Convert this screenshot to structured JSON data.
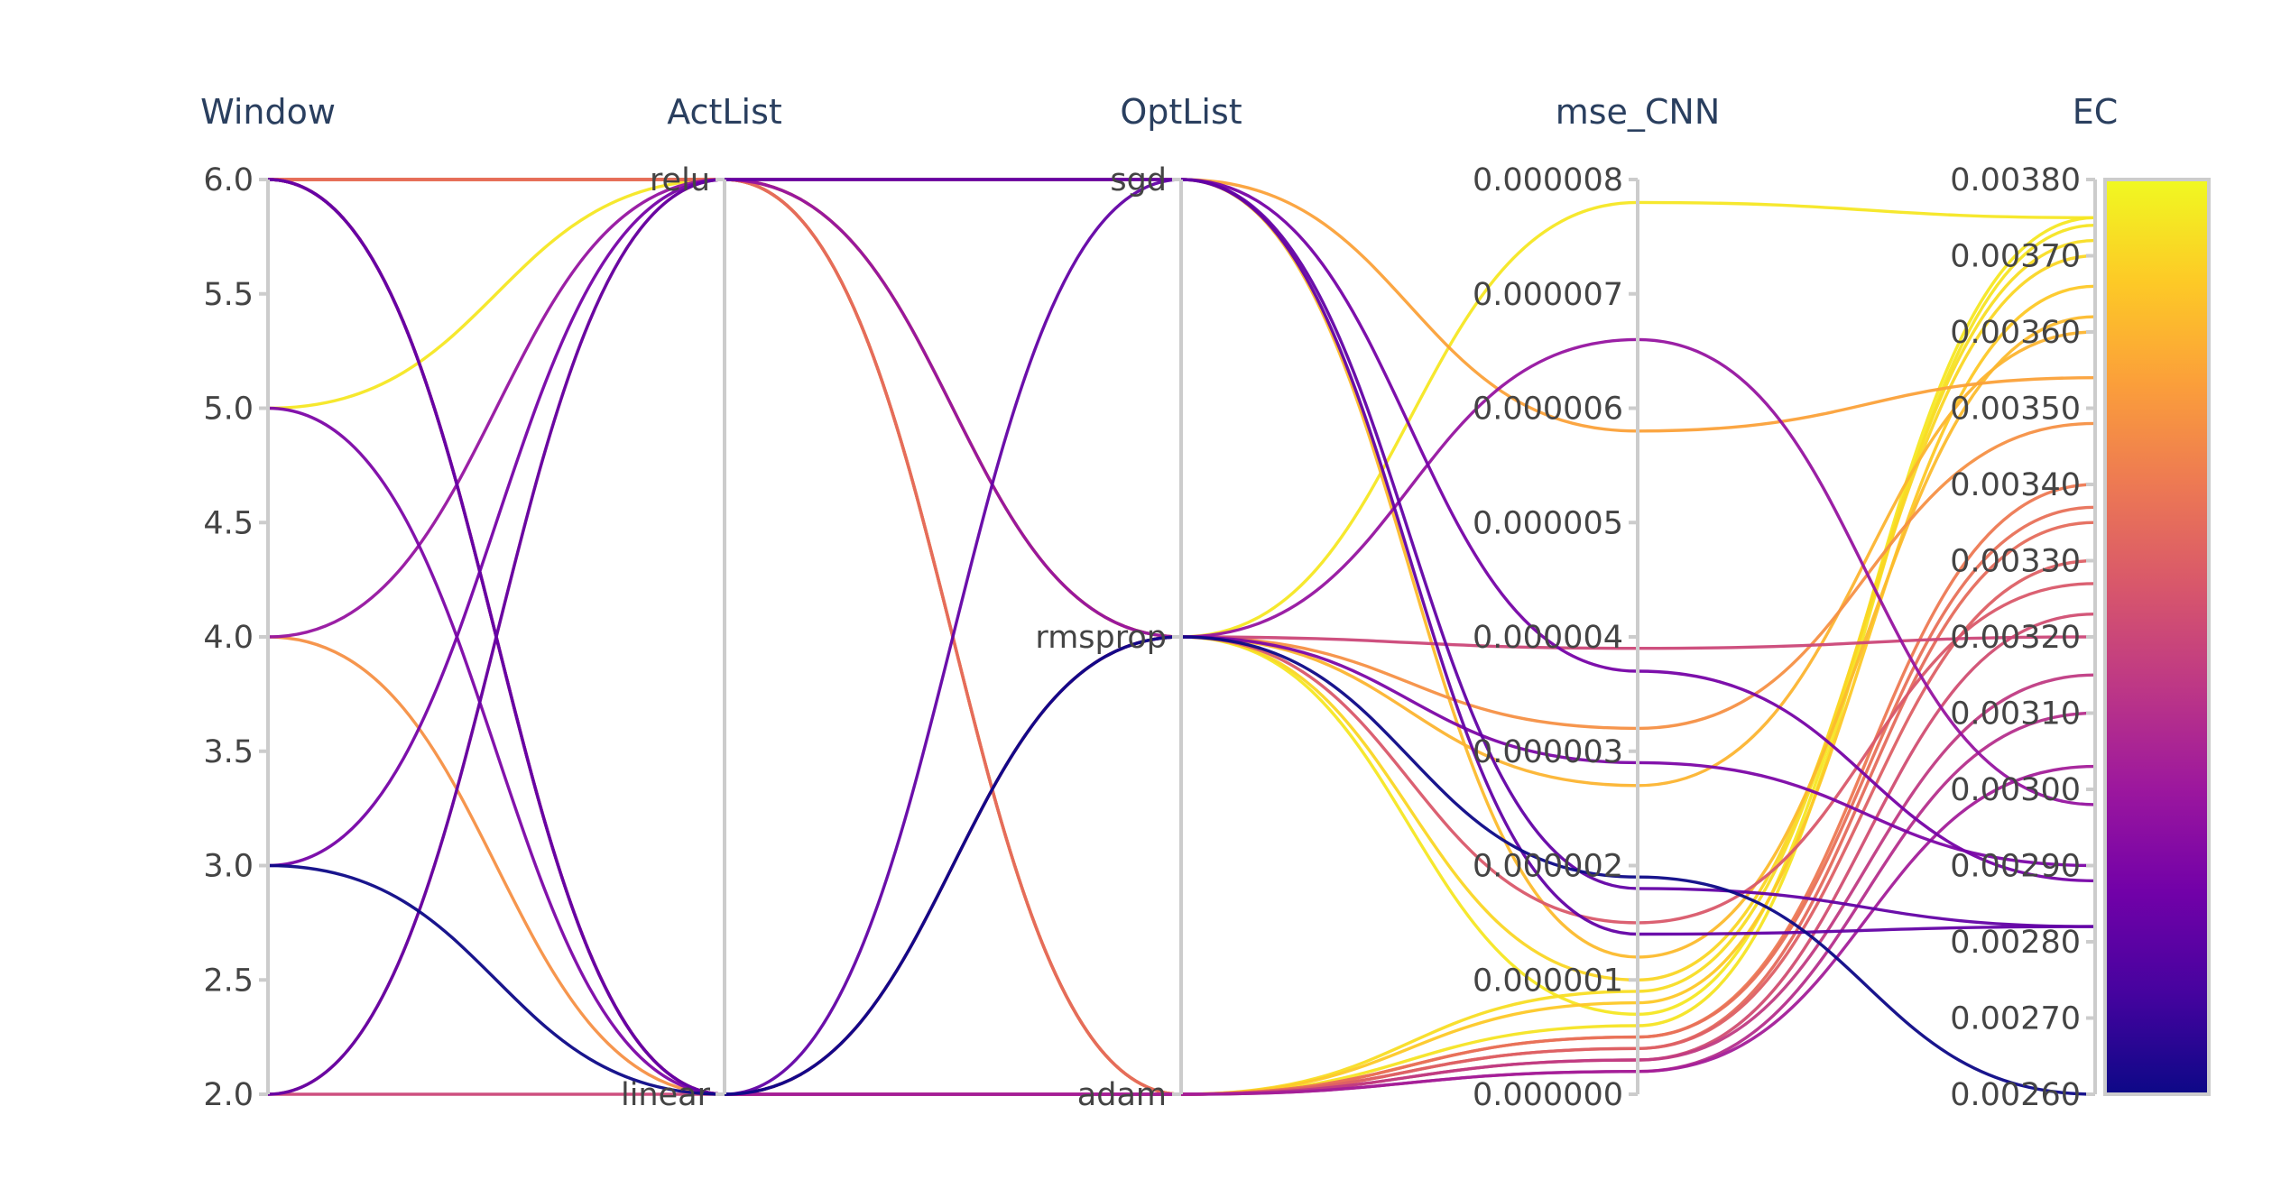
{
  "chart_data": {
    "type": "parallel_coordinates",
    "colorscale": [
      "#0d0887",
      "#46039f",
      "#7201a8",
      "#9c179e",
      "#bd3786",
      "#d8576b",
      "#ed7953",
      "#fb9f3a",
      "#fdca26",
      "#f0f921"
    ],
    "dimensions": [
      {
        "key": "window",
        "label": "Window",
        "type": "numeric",
        "range": [
          2.0,
          6.0
        ],
        "ticks": [
          2.0,
          2.5,
          3.0,
          3.5,
          4.0,
          4.5,
          5.0,
          5.5,
          6.0
        ],
        "tick_labels": [
          "2.0",
          "2.5",
          "3.0",
          "3.5",
          "4.0",
          "4.5",
          "5.0",
          "5.5",
          "6.0"
        ]
      },
      {
        "key": "act",
        "label": "ActList",
        "type": "categorical",
        "range": [
          0,
          1
        ],
        "ticks": [
          0,
          1
        ],
        "tick_labels": [
          "linear",
          "relu"
        ]
      },
      {
        "key": "opt",
        "label": "OptList",
        "type": "categorical",
        "range": [
          0,
          2
        ],
        "ticks": [
          0,
          1,
          2
        ],
        "tick_labels": [
          "adam",
          "rmsprop",
          "sgd"
        ]
      },
      {
        "key": "mse",
        "label": "mse_CNN",
        "type": "numeric",
        "range": [
          0,
          8e-06
        ],
        "ticks": [
          0,
          1e-06,
          2e-06,
          3e-06,
          4e-06,
          5e-06,
          6e-06,
          7e-06,
          8e-06
        ],
        "tick_labels": [
          "0.000000",
          "0.000001",
          "0.000002",
          "0.000003",
          "0.000004",
          "0.000005",
          "0.000006",
          "0.000007",
          "0.000008"
        ]
      },
      {
        "key": "ec",
        "label": "EC",
        "type": "numeric",
        "range": [
          0.0026,
          0.0038
        ],
        "ticks": [
          0.0026,
          0.0027,
          0.0028,
          0.0029,
          0.003,
          0.0031,
          0.0032,
          0.0033,
          0.0034,
          0.0035,
          0.0036,
          0.0037,
          0.0038
        ],
        "tick_labels": [
          "0.00260",
          "0.00270",
          "0.00280",
          "0.00290",
          "0.00300",
          "0.00310",
          "0.00320",
          "0.00330",
          "0.00340",
          "0.00350",
          "0.00360",
          "0.00370",
          "0.00380"
        ]
      }
    ],
    "color_range": [
      0.0026,
      0.0038
    ],
    "records": [
      {
        "window": 6,
        "act": 1,
        "opt": 2,
        "mse": 5.8e-06,
        "ec": 0.00354
      },
      {
        "window": 6,
        "act": 0,
        "opt": 2,
        "mse": 1.8e-06,
        "ec": 0.00282
      },
      {
        "window": 5,
        "act": 1,
        "opt": 1,
        "mse": 7.8e-06,
        "ec": 0.00375
      },
      {
        "window": 5,
        "act": 0,
        "opt": 1,
        "mse": 2.9e-06,
        "ec": 0.0029
      },
      {
        "window": 4,
        "act": 1,
        "opt": 1,
        "mse": 6.6e-06,
        "ec": 0.00298
      },
      {
        "window": 4,
        "act": 0,
        "opt": 1,
        "mse": 3.2e-06,
        "ec": 0.00348
      },
      {
        "window": 3,
        "act": 1,
        "opt": 2,
        "mse": 3.7e-06,
        "ec": 0.00288
      },
      {
        "window": 3,
        "act": 0,
        "opt": 1,
        "mse": 1.9e-06,
        "ec": 0.0026
      },
      {
        "window": 2,
        "act": 1,
        "opt": 2,
        "mse": 1.4e-06,
        "ec": 0.00282
      },
      {
        "window": 2,
        "act": 0,
        "opt": 1,
        "mse": 3.9e-06,
        "ec": 0.0032
      },
      {
        "window": 2,
        "act": 1,
        "opt": 1,
        "mse": 1.5e-06,
        "ec": 0.00327
      },
      {
        "window": 6,
        "act": 1,
        "opt": 1,
        "mse": 1e-06,
        "ec": 0.0037
      },
      {
        "window": 6,
        "act": 1,
        "opt": 2,
        "mse": 1.2e-06,
        "ec": 0.00362
      },
      {
        "window": 6,
        "act": 0,
        "opt": 1,
        "mse": 2.7e-06,
        "ec": 0.0036
      },
      {
        "window": 6,
        "act": 1,
        "opt": 0,
        "mse": 9e-07,
        "ec": 0.00372
      },
      {
        "window": 6,
        "act": 1,
        "opt": 0,
        "mse": 8e-07,
        "ec": 0.00366
      },
      {
        "window": 6,
        "act": 0,
        "opt": 1,
        "mse": 7e-07,
        "ec": 0.00375
      },
      {
        "window": 6,
        "act": 1,
        "opt": 0,
        "mse": 6e-07,
        "ec": 0.00374
      },
      {
        "window": 6,
        "act": 1,
        "opt": 0,
        "mse": 5e-07,
        "ec": 0.0034
      },
      {
        "window": 6,
        "act": 1,
        "opt": 0,
        "mse": 5e-07,
        "ec": 0.00337
      },
      {
        "window": 6,
        "act": 1,
        "opt": 0,
        "mse": 4e-07,
        "ec": 0.00335
      },
      {
        "window": 6,
        "act": 0,
        "opt": 0,
        "mse": 4e-07,
        "ec": 0.0033
      },
      {
        "window": 6,
        "act": 0,
        "opt": 0,
        "mse": 3e-07,
        "ec": 0.00323
      },
      {
        "window": 6,
        "act": 0,
        "opt": 0,
        "mse": 3e-07,
        "ec": 0.00315
      },
      {
        "window": 6,
        "act": 0,
        "opt": 0,
        "mse": 2e-07,
        "ec": 0.0031
      },
      {
        "window": 6,
        "act": 0,
        "opt": 0,
        "mse": 2e-07,
        "ec": 0.00303
      }
    ]
  }
}
